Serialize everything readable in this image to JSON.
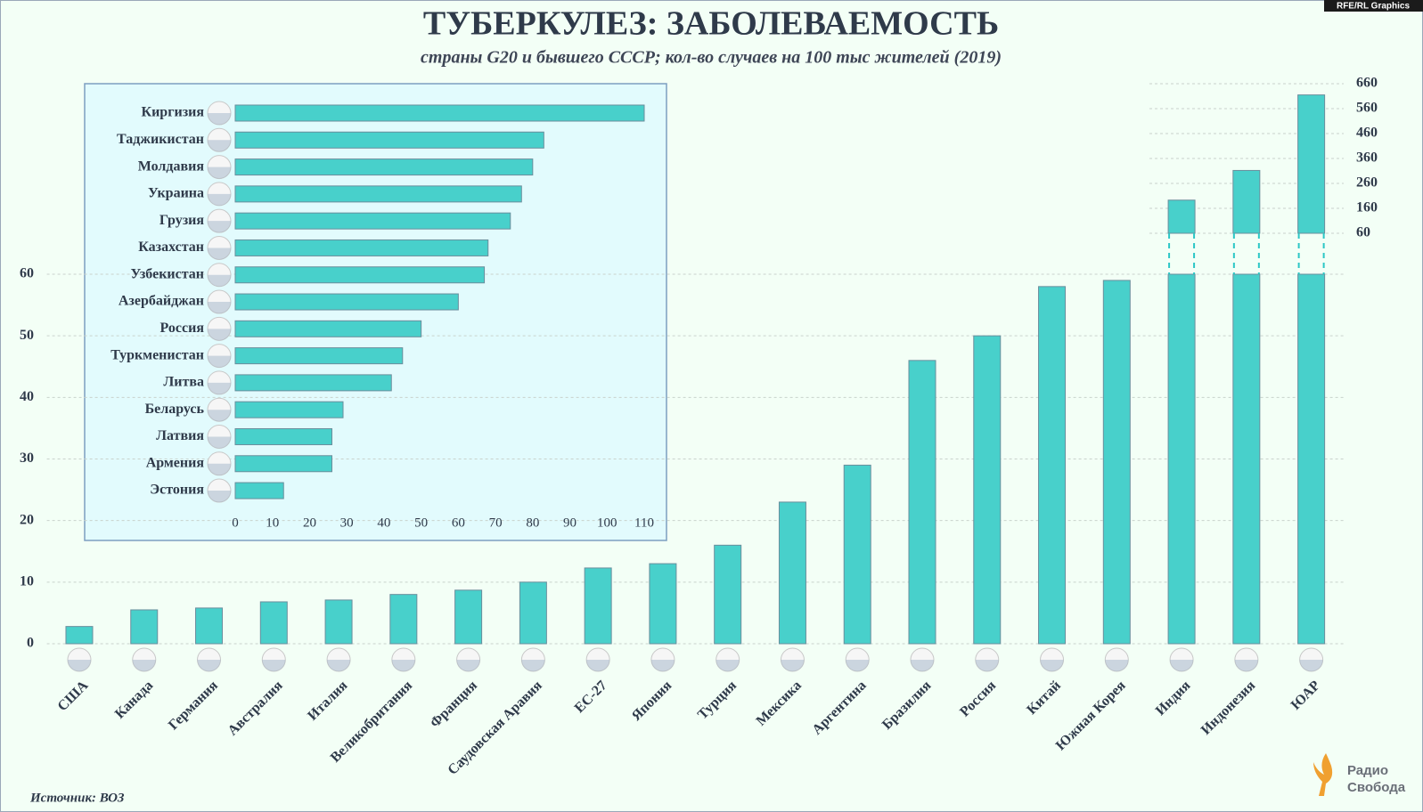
{
  "credit": "RFE/RL Graphics",
  "source": "Источник: ВОЗ",
  "logo": [
    "Радио",
    "Свобода"
  ],
  "chart_data": [
    {
      "type": "bar",
      "title": "ТУБЕРКУЛЕЗ: ЗАБОЛЕВАЕМОСТЬ",
      "subtitle": "страны G20 и бывшего СССР; кол-во случаев на 100 тыс жителей (2019)",
      "categories": [
        "США",
        "Канада",
        "Германия",
        "Австралия",
        "Италия",
        "Великобритания",
        "Франция",
        "Саудовская Аравия",
        "ЕС-27",
        "Япония",
        "Турция",
        "Мексика",
        "Аргентина",
        "Бразилия",
        "Россия",
        "Китай",
        "Южная Корея",
        "Индия",
        "Индонезия",
        "ЮАР"
      ],
      "values": [
        2.8,
        5.5,
        5.8,
        6.8,
        7.1,
        8,
        8.7,
        10,
        12.3,
        13,
        16,
        23,
        29,
        46,
        50,
        58,
        59,
        193,
        312,
        615
      ],
      "color": "#48d0cb",
      "ylim": [
        0,
        60
      ],
      "yticks": [
        0,
        10,
        20,
        30,
        40,
        50,
        60
      ],
      "y2lim": [
        60,
        660
      ],
      "y2ticks": [
        60,
        160,
        260,
        360,
        460,
        560,
        660
      ],
      "grid": true
    },
    {
      "type": "barh",
      "categories": [
        "Киргизия",
        "Таджикистан",
        "Молдавия",
        "Украина",
        "Грузия",
        "Казахстан",
        "Узбекистан",
        "Азербайджан",
        "Россия",
        "Туркменистан",
        "Литва",
        "Беларусь",
        "Латвия",
        "Армения",
        "Эстония"
      ],
      "values": [
        110,
        83,
        80,
        77,
        74,
        68,
        67,
        60,
        50,
        45,
        42,
        29,
        26,
        26,
        13
      ],
      "color": "#48d0cb",
      "xlim": [
        0,
        110
      ],
      "xticks": [
        0,
        10,
        20,
        30,
        40,
        50,
        60,
        70,
        80,
        90,
        100,
        110
      ]
    }
  ]
}
